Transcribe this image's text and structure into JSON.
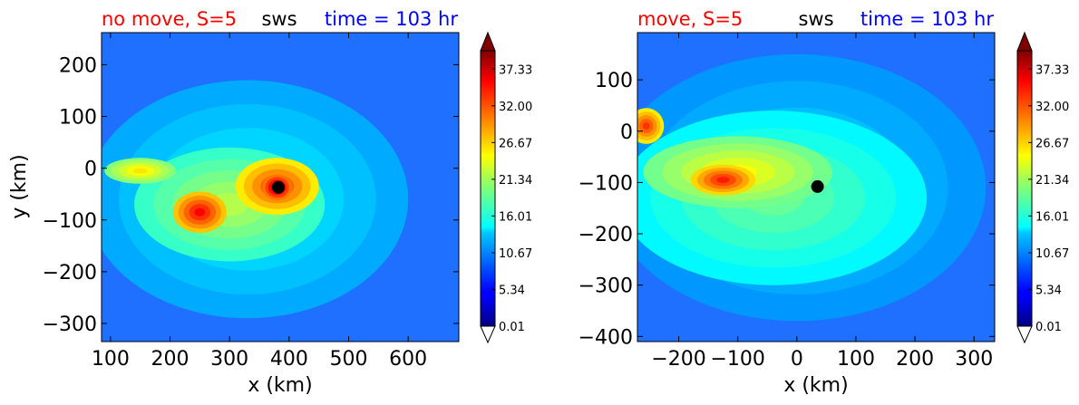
{
  "chart_data": [
    {
      "type": "heatmap",
      "title_left": "no move, S=5",
      "title_center": "sws",
      "title_right": "time = 103 hr",
      "title_colors": {
        "left": "#ff0000",
        "center": "#000000",
        "right": "#0000ff"
      },
      "xlabel": "x (km)",
      "ylabel": "y (km)",
      "xlim": [
        85,
        685
      ],
      "ylim": [
        -335,
        262
      ],
      "xticks": [
        100,
        200,
        300,
        400,
        500,
        600
      ],
      "yticks": [
        200,
        100,
        0,
        -100,
        -200,
        -300
      ],
      "xtick_labels": [
        "100",
        "200",
        "300",
        "400",
        "500",
        "600"
      ],
      "ytick_labels": [
        "200",
        "100",
        "0",
        "−100",
        "−200",
        "−300"
      ],
      "colorbar": {
        "min": 0.01,
        "max": 40,
        "ticks": [
          "37.33",
          "32.00",
          "26.67",
          "21.34",
          "16.01",
          "10.67",
          "5.34",
          "0.01"
        ],
        "extend": "both"
      },
      "markers": [
        {
          "x": 382,
          "y": -37
        }
      ],
      "features": [
        {
          "x": 380,
          "y": -35,
          "rx": 70,
          "ry": 55,
          "value": 33
        },
        {
          "x": 250,
          "y": -85,
          "rx": 45,
          "ry": 40,
          "value": 35
        },
        {
          "x": 150,
          "y": -5,
          "rx": 60,
          "ry": 25,
          "value": 26
        },
        {
          "x": 300,
          "y": -70,
          "rx": 160,
          "ry": 110,
          "value": 22
        },
        {
          "x": 330,
          "y": -60,
          "rx": 270,
          "ry": 230,
          "value": 15
        },
        {
          "x": 380,
          "y": -37,
          "rx": 25,
          "ry": 25,
          "value": 39
        }
      ]
    },
    {
      "type": "heatmap",
      "title_left": "move, S=5",
      "title_center": "sws",
      "title_right": "time = 103 hr",
      "title_colors": {
        "left": "#ff0000",
        "center": "#000000",
        "right": "#0000ff"
      },
      "xlabel": "x (km)",
      "ylabel": "",
      "xlim": [
        -270,
        335
      ],
      "ylim": [
        -410,
        192
      ],
      "xticks": [
        -200,
        -100,
        0,
        100,
        200,
        300
      ],
      "yticks": [
        100,
        0,
        -100,
        -200,
        -300,
        -400
      ],
      "xtick_labels": [
        "−200",
        "−100",
        "0",
        "100",
        "200",
        "300"
      ],
      "ytick_labels": [
        "100",
        "0",
        "−100",
        "−200",
        "−300",
        "−400"
      ],
      "colorbar": {
        "min": 0.01,
        "max": 40,
        "ticks": [
          "37.33",
          "32.00",
          "26.67",
          "21.34",
          "16.01",
          "10.67",
          "5.34",
          "0.01"
        ],
        "extend": "both"
      },
      "markers": [
        {
          "x": 35,
          "y": -108
        }
      ],
      "features": [
        {
          "x": -125,
          "y": -95,
          "rx": 55,
          "ry": 30,
          "value": 34
        },
        {
          "x": -255,
          "y": 10,
          "rx": 30,
          "ry": 35,
          "value": 33
        },
        {
          "x": -100,
          "y": -80,
          "rx": 160,
          "ry": 70,
          "value": 25
        },
        {
          "x": -40,
          "y": -130,
          "rx": 260,
          "ry": 170,
          "value": 19
        },
        {
          "x": 0,
          "y": -110,
          "rx": 320,
          "ry": 260,
          "value": 14
        }
      ]
    }
  ]
}
